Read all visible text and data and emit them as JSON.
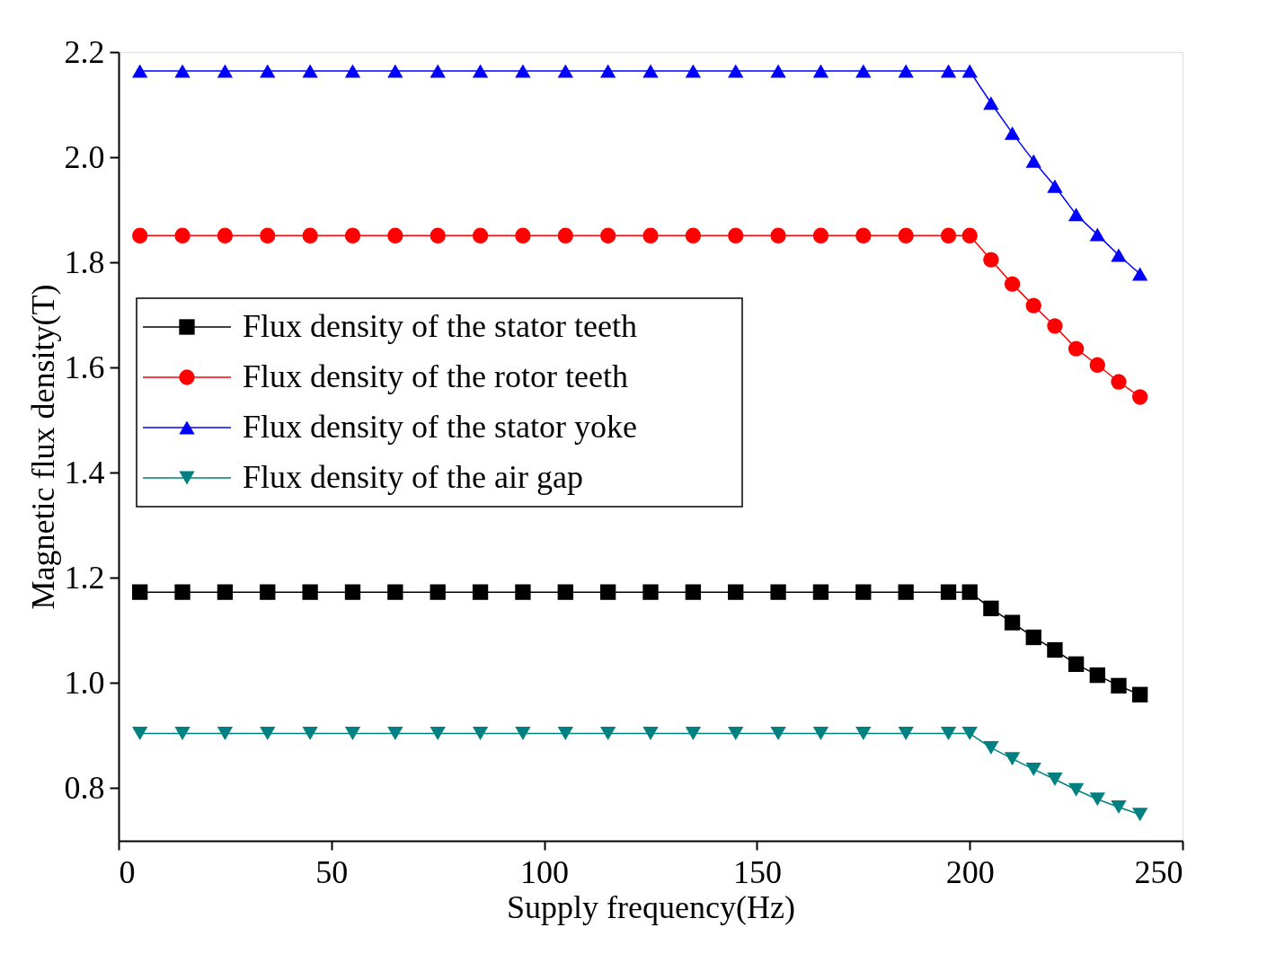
{
  "chart_data": {
    "type": "line",
    "xlabel": "Supply frequency(Hz)",
    "ylabel": "Magnetic flux density(T)",
    "x": [
      5,
      15,
      25,
      35,
      45,
      55,
      65,
      75,
      85,
      95,
      105,
      115,
      125,
      135,
      145,
      155,
      165,
      175,
      185,
      195,
      200,
      205,
      210,
      215,
      220,
      225,
      230,
      235,
      240
    ],
    "xlim": [
      0,
      250
    ],
    "xticks": [
      0,
      50,
      100,
      150,
      200,
      250
    ],
    "ylim": [
      0.7,
      2.2
    ],
    "yticks": [
      0.8,
      {
        "value": 1.0,
        "label": "1.0"
      },
      1.2,
      1.4,
      1.6,
      1.8,
      {
        "value": 2.0,
        "label": "2.0"
      },
      2.2
    ],
    "grid": false,
    "legend": "left",
    "line_style": "solid",
    "series": [
      {
        "name": "Flux density of the stator teeth",
        "color": "#000000",
        "marker": "square",
        "values": [
          1.173,
          1.173,
          1.173,
          1.173,
          1.173,
          1.173,
          1.173,
          1.173,
          1.173,
          1.173,
          1.173,
          1.173,
          1.173,
          1.173,
          1.173,
          1.173,
          1.173,
          1.173,
          1.173,
          1.173,
          1.173,
          1.142,
          1.115,
          1.087,
          1.063,
          1.036,
          1.015,
          0.995,
          0.978
        ]
      },
      {
        "name": "Flux density of the rotor teeth",
        "color": "#ff0000",
        "marker": "circle",
        "values": [
          1.851,
          1.851,
          1.851,
          1.851,
          1.851,
          1.851,
          1.851,
          1.851,
          1.851,
          1.851,
          1.851,
          1.851,
          1.851,
          1.851,
          1.851,
          1.851,
          1.851,
          1.851,
          1.851,
          1.851,
          1.851,
          1.805,
          1.759,
          1.718,
          1.679,
          1.636,
          1.605,
          1.573,
          1.544
        ]
      },
      {
        "name": "Flux density of the stator yoke",
        "color": "#0000ff",
        "marker": "triangle",
        "values": [
          2.164,
          2.164,
          2.164,
          2.164,
          2.164,
          2.164,
          2.164,
          2.164,
          2.164,
          2.164,
          2.164,
          2.164,
          2.164,
          2.164,
          2.164,
          2.164,
          2.164,
          2.164,
          2.164,
          2.164,
          2.164,
          2.103,
          2.046,
          1.993,
          1.945,
          1.891,
          1.853,
          1.814,
          1.778
        ]
      },
      {
        "name": "Flux density of the air gap",
        "color": "#008080",
        "marker": "triangle-down",
        "values": [
          0.904,
          0.904,
          0.904,
          0.904,
          0.904,
          0.904,
          0.904,
          0.904,
          0.904,
          0.904,
          0.904,
          0.904,
          0.904,
          0.904,
          0.904,
          0.904,
          0.904,
          0.904,
          0.904,
          0.904,
          0.904,
          0.877,
          0.856,
          0.836,
          0.817,
          0.797,
          0.779,
          0.764,
          0.75
        ]
      }
    ]
  }
}
